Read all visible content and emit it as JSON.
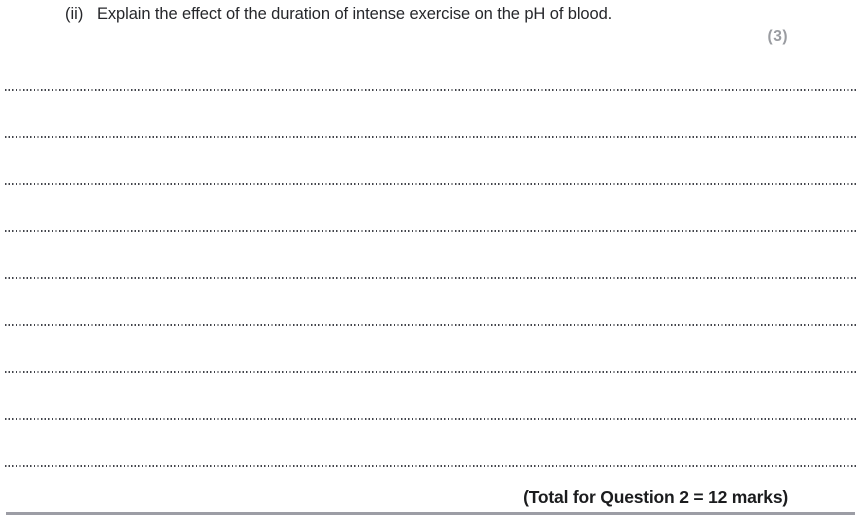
{
  "question": {
    "number_label": "(ii)",
    "text": "Explain the effect of the duration of intense exercise on the pH of blood.",
    "marks_label": "(3)"
  },
  "answer": {
    "line_count": 9
  },
  "footer": {
    "total_label": "(Total for Question 2 = 12 marks)"
  },
  "colors": {
    "marks": "#9a9ca1",
    "text": "#26272b",
    "dotted_line": "#41434a",
    "bottom_rule": "#9c9da5"
  }
}
